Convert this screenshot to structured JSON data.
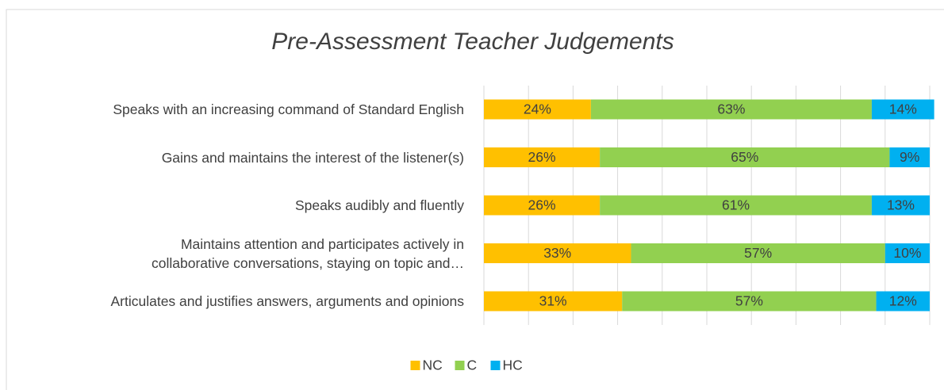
{
  "chart_data": {
    "type": "stacked_bar_horizontal",
    "title": "Pre-Assessment Teacher Judgements",
    "categories": [
      "Speaks with an increasing command of Standard English",
      "Gains and  maintains the interest of the listener(s)",
      "Speaks audibly and fluently",
      "Maintains attention and participates actively in\ncollaborative conversations, staying on topic and…",
      "Articulates and justifies answers, arguments and opinions"
    ],
    "series": [
      {
        "name": "NC",
        "color": "#ffc000",
        "values": [
          24,
          26,
          26,
          33,
          31
        ],
        "value_labels": [
          "24%",
          "26%",
          "26%",
          "33%",
          "31%"
        ]
      },
      {
        "name": "C",
        "color": "#92d050",
        "values": [
          63,
          65,
          61,
          57,
          57
        ],
        "value_labels": [
          "63%",
          "65%",
          "61%",
          "57%",
          "57%"
        ]
      },
      {
        "name": "HC",
        "color": "#00b0f0",
        "values": [
          14,
          9,
          13,
          10,
          12
        ],
        "value_labels": [
          "14%",
          "9%",
          "13%",
          "10%",
          "12%"
        ]
      }
    ],
    "xlim": [
      0,
      100
    ],
    "xticks": [
      0,
      10,
      20,
      30,
      40,
      50,
      60,
      70,
      80,
      90,
      100
    ],
    "grid": true,
    "legend": "bottom"
  }
}
